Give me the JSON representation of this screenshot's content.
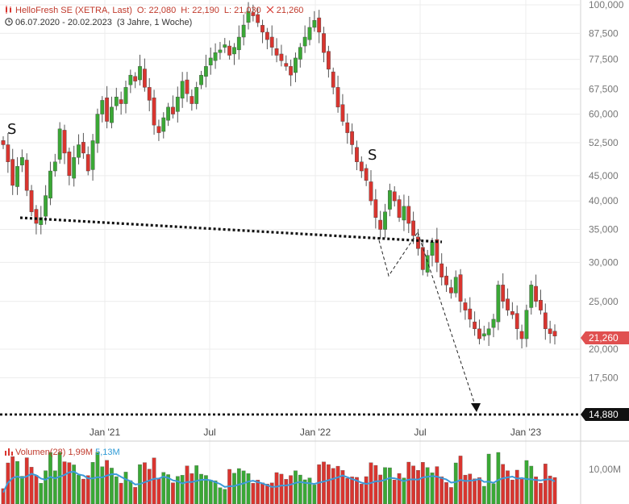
{
  "header": {
    "title": "HelloFresh SE (XETRA, Last)",
    "open": "O: 22,080",
    "high": "H: 22,190",
    "low": "L: 21,030",
    "change": "21,260",
    "range": "06.07.2020 - 20.02.2023",
    "span": "(3 Jahre, 1 Woche)"
  },
  "volume_legend": {
    "label": "Volumen(28)",
    "value": "1,99M",
    "avg": "5,13M"
  },
  "colors": {
    "up": "#3aa835",
    "down": "#d9352f",
    "avg_line": "#3c9ad8",
    "last_badge": "#e05050"
  },
  "chart_data": {
    "type": "candlestick",
    "y_scale": "log",
    "y_ticks": [
      100,
      87.5,
      77.5,
      67.5,
      60,
      52.5,
      45,
      40,
      35,
      30,
      25,
      20,
      17.5
    ],
    "y_tick_labels": [
      "100,000",
      "87,500",
      "77,500",
      "67,500",
      "60,000",
      "52,500",
      "45,000",
      "40,000",
      "35,000",
      "30,000",
      "25,000",
      "20,000",
      "17,500"
    ],
    "x_ticks": [
      "Jan '21",
      "Jul",
      "Jan '22",
      "Jul",
      "Jan '23"
    ],
    "last_value": 21.26,
    "last_label": "21,260",
    "target_value": 14.88,
    "target_label": "14,880",
    "pattern_labels": [
      "S",
      "S"
    ],
    "volume_tick_label": "10,00M",
    "weekly_closes": [
      52,
      48,
      43,
      47,
      49,
      42,
      38,
      36,
      37,
      41,
      46,
      48,
      56,
      50,
      45,
      49,
      52,
      50,
      46,
      53,
      60,
      64,
      58,
      62,
      65,
      63,
      68,
      72,
      70,
      75,
      68,
      64,
      57,
      55,
      59,
      62,
      60,
      65,
      70,
      66,
      63,
      68,
      72,
      75,
      78,
      80,
      81,
      83,
      79,
      82,
      86,
      91,
      97,
      95,
      92,
      88,
      85,
      82,
      79,
      77,
      75,
      72,
      78,
      82,
      86,
      90,
      93,
      88,
      80,
      74,
      68,
      62,
      58,
      55,
      52,
      48,
      46,
      44,
      40,
      37,
      35,
      38,
      42,
      40,
      37,
      39,
      36,
      34,
      32,
      29,
      31,
      33,
      30,
      28,
      27,
      26,
      28,
      25,
      24,
      23,
      22,
      21,
      21.5,
      22,
      23,
      27,
      25,
      24,
      23.5,
      22,
      21,
      24,
      27,
      25,
      24,
      22,
      21.5,
      21.26
    ]
  }
}
